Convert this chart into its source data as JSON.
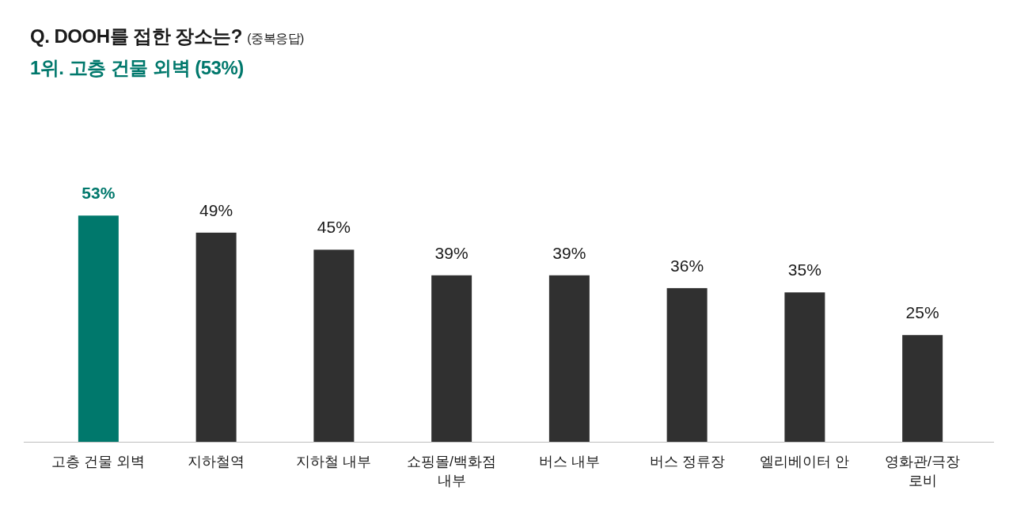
{
  "chart_data": {
    "type": "bar",
    "title": "Q. DOOH를 접한 장소는? (중복응답)",
    "subtitle": "1위. 고층 건물 외벽 (53%)",
    "categories": [
      "고층 건물 외벽",
      "지하철역",
      "지하철 내부",
      "쇼핑몰/백화점 내부",
      "버스 내부",
      "버스 정류장",
      "엘리베이터 안",
      "영화관/극장 로비"
    ],
    "values": [
      53,
      49,
      45,
      39,
      39,
      36,
      35,
      25
    ],
    "colors": [
      "#00786c",
      "#303030",
      "#303030",
      "#303030",
      "#303030",
      "#303030",
      "#303030",
      "#303030"
    ],
    "value_labels": [
      "53%",
      "49%",
      "45%",
      "39%",
      "39%",
      "36%",
      "35%",
      "25%"
    ]
  }
}
